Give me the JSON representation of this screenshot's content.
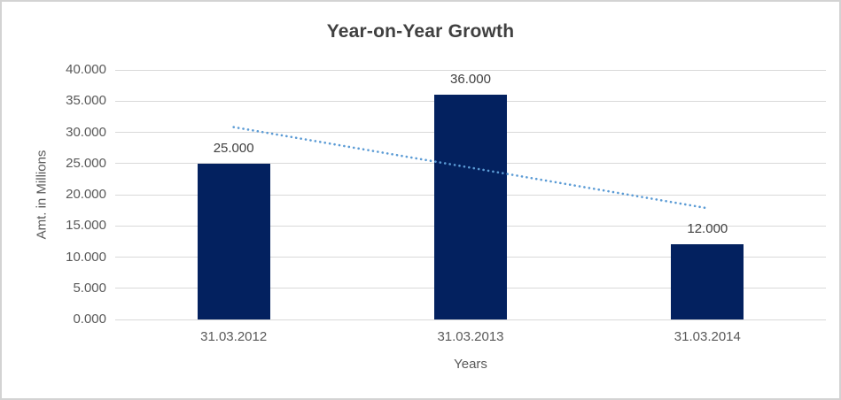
{
  "chart_data": {
    "type": "bar",
    "title": "Year-on-Year Growth",
    "xlabel": "Years",
    "ylabel": "Amt. in Millions",
    "categories": [
      "31.03.2012",
      "31.03.2013",
      "31.03.2014"
    ],
    "values": [
      25,
      36,
      12
    ],
    "data_labels": [
      "25.000",
      "36.000",
      "12.000"
    ],
    "ylim": [
      0,
      40
    ],
    "ytick_step": 5,
    "ytick_labels": [
      "0.000",
      "5.000",
      "10.000",
      "15.000",
      "20.000",
      "25.000",
      "30.000",
      "35.000",
      "40.000"
    ],
    "grid": true,
    "legend": false,
    "bar_color": "#03215F",
    "trendline": {
      "type": "linear",
      "style": "round-dot",
      "color": "#5B9BD5",
      "start_value": 30.83,
      "end_value": 17.83
    },
    "colors": {
      "gridline": "#D9D9D9",
      "title_text": "#404040",
      "axis_text": "#595959",
      "data_label_text": "#404040",
      "background": "#FFFFFF",
      "border": "#D3D3D3"
    }
  }
}
